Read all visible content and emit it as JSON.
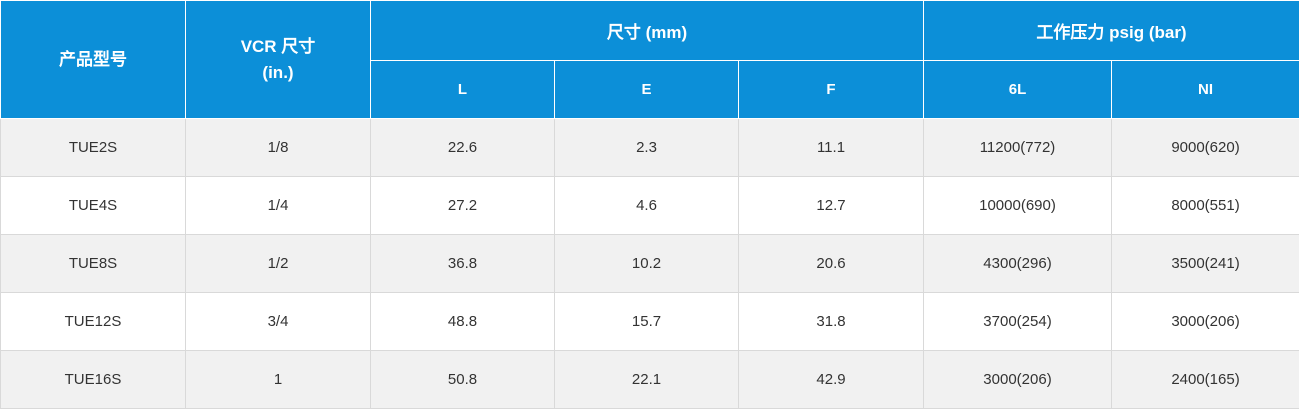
{
  "header": {
    "model": "产品型号",
    "vcr_size_line1": "VCR 尺寸",
    "vcr_size_line2": "(in.)",
    "dimensions": "尺寸 (mm)",
    "pressure": "工作压力 psig (bar)",
    "sub": {
      "L": "L",
      "E": "E",
      "F": "F",
      "6L": "6L",
      "NI": "NI"
    }
  },
  "colors": {
    "header_bg": "#0c8fd8",
    "row_alt": "#f1f1f1",
    "row": "#ffffff"
  },
  "rows": [
    {
      "model": "TUE2S",
      "vcr": "1/8",
      "L": "22.6",
      "E": "2.3",
      "F": "11.1",
      "p6L": "11200(772)",
      "pNI": "9000(620)"
    },
    {
      "model": "TUE4S",
      "vcr": "1/4",
      "L": "27.2",
      "E": "4.6",
      "F": "12.7",
      "p6L": "10000(690)",
      "pNI": "8000(551)"
    },
    {
      "model": "TUE8S",
      "vcr": "1/2",
      "L": "36.8",
      "E": "10.2",
      "F": "20.6",
      "p6L": "4300(296)",
      "pNI": "3500(241)"
    },
    {
      "model": "TUE12S",
      "vcr": "3/4",
      "L": "48.8",
      "E": "15.7",
      "F": "31.8",
      "p6L": "3700(254)",
      "pNI": "3000(206)"
    },
    {
      "model": "TUE16S",
      "vcr": "1",
      "L": "50.8",
      "E": "22.1",
      "F": "42.9",
      "p6L": "3000(206)",
      "pNI": "2400(165)"
    }
  ]
}
